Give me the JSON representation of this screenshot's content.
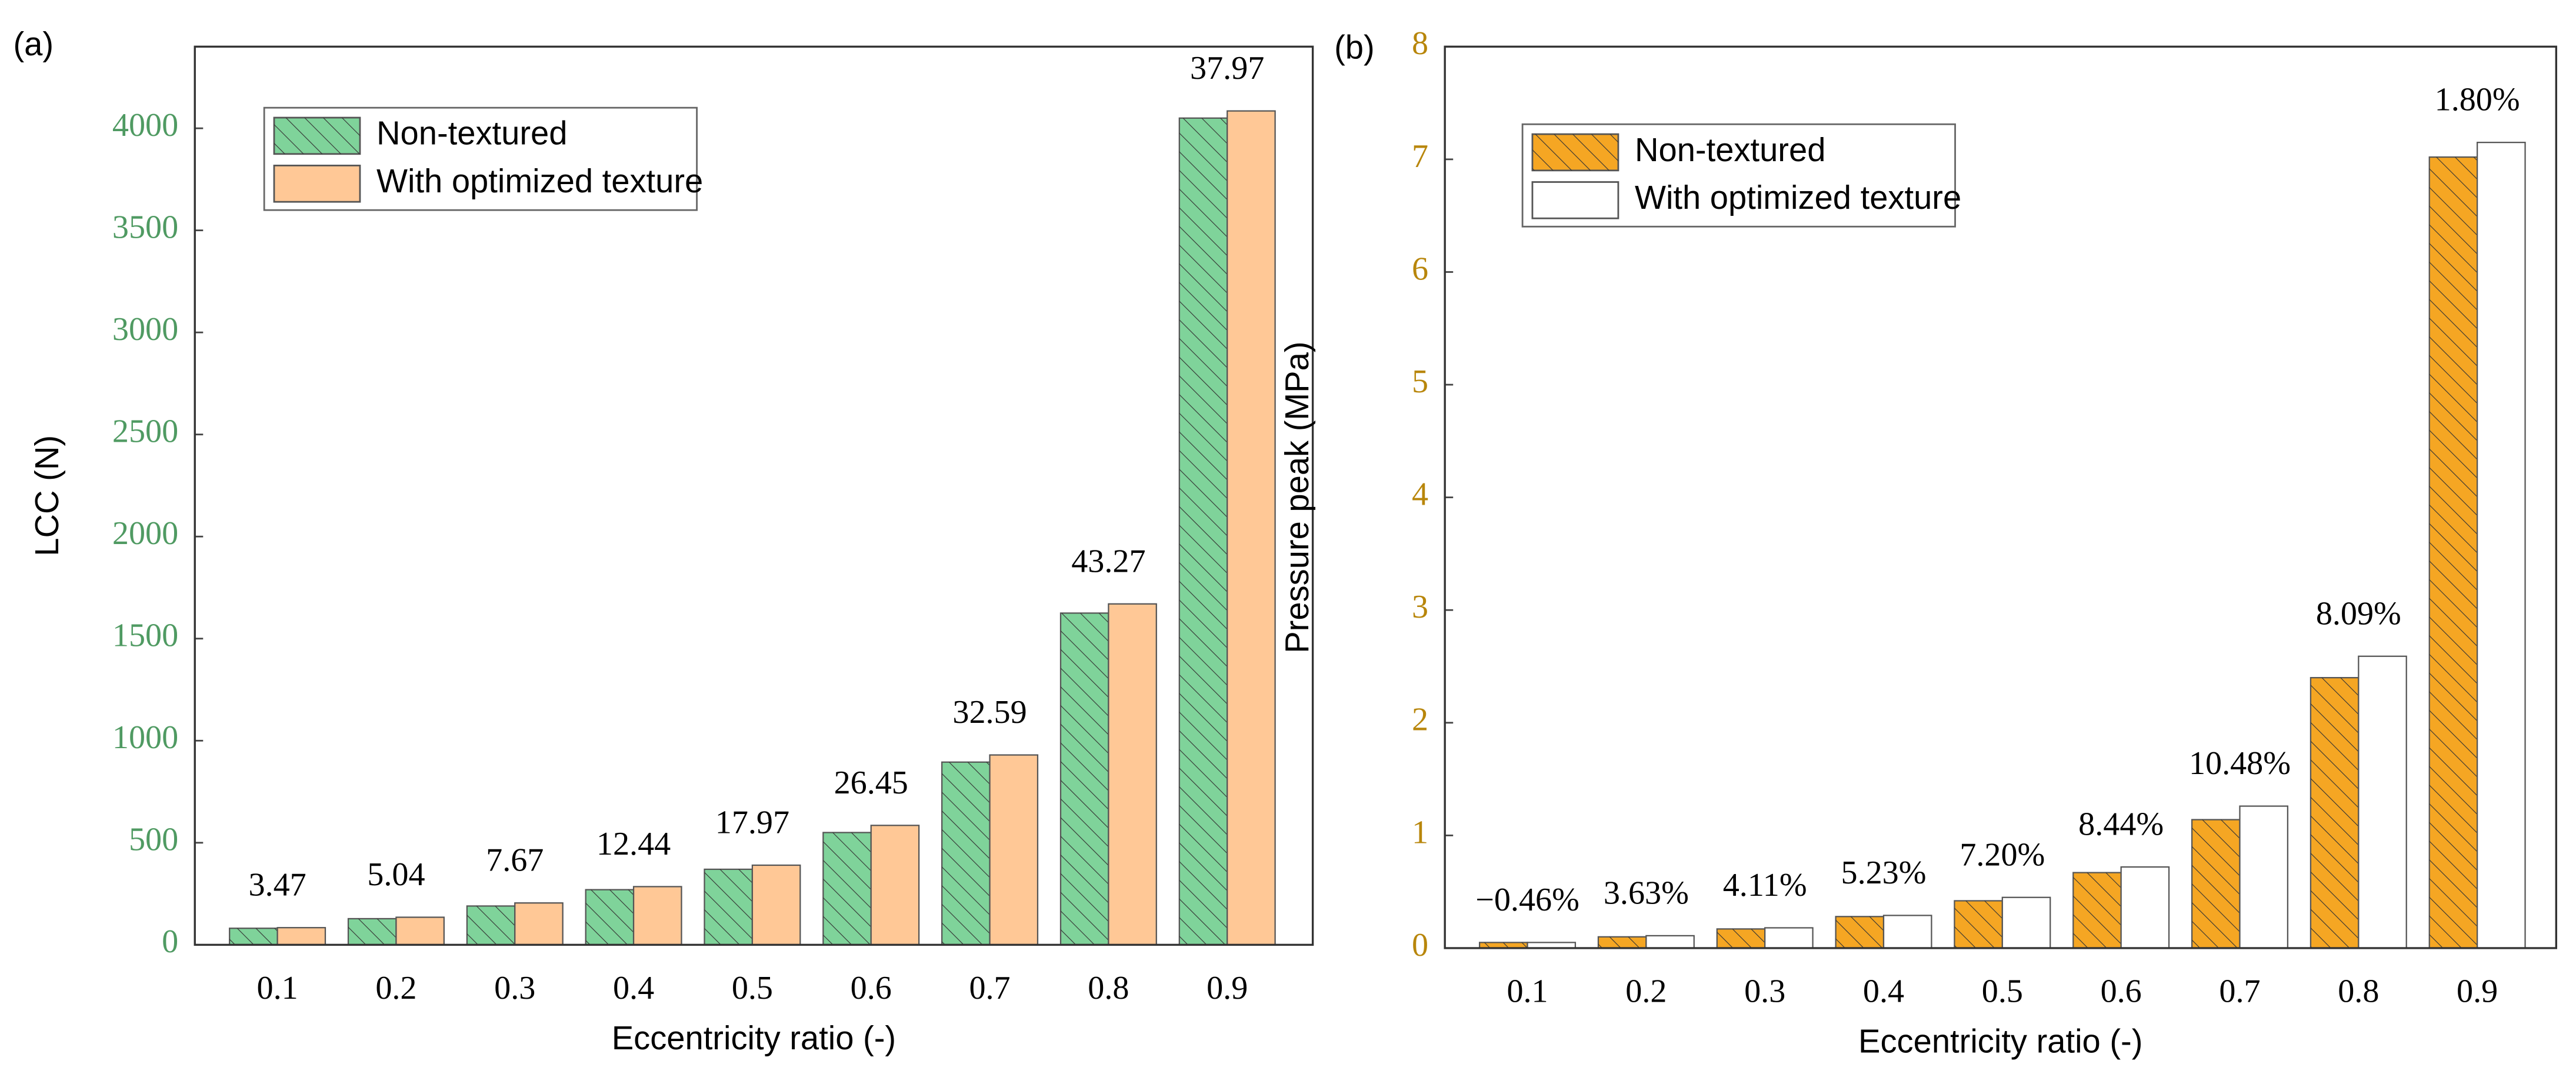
{
  "chart_data": [
    {
      "type": "bar",
      "panel": "(a)",
      "ylabel": "LCC (N)",
      "xlabel": "Eccentricity ratio (-)",
      "categories": [
        "0.1",
        "0.2",
        "0.3",
        "0.4",
        "0.5",
        "0.6",
        "0.7",
        "0.8",
        "0.9"
      ],
      "series": [
        {
          "name": "Non-textured",
          "color": "#7fd39a",
          "hatch": true,
          "values": [
            81,
            128,
            190,
            270,
            370,
            550,
            895,
            1625,
            4050
          ]
        },
        {
          "name": "With optimized texture",
          "color": "#ffc896",
          "hatch": false,
          "values": [
            84,
            135,
            205,
            285,
            390,
            585,
            930,
            1670,
            4085
          ]
        }
      ],
      "annotations": [
        "3.47",
        "5.04",
        "7.67",
        "12.44",
        "17.97",
        "26.45",
        "32.59",
        "43.27",
        "37.97"
      ],
      "ylim": [
        0,
        4400
      ],
      "yticks": [
        0,
        500,
        1000,
        1500,
        2000,
        2500,
        3000,
        3500,
        4000
      ],
      "tick_color": "#4f9a62",
      "legend": "upper left"
    },
    {
      "type": "bar",
      "panel": "(b)",
      "ylabel": "Pressure  peak (MPa)",
      "xlabel": "Eccentricity ratio (-)",
      "categories": [
        "0.1",
        "0.2",
        "0.3",
        "0.4",
        "0.5",
        "0.6",
        "0.7",
        "0.8",
        "0.9"
      ],
      "series": [
        {
          "name": "Non-textured",
          "color": "#f5a623",
          "hatch": true,
          "values": [
            0.05,
            0.1,
            0.17,
            0.28,
            0.42,
            0.67,
            1.14,
            2.4,
            7.02
          ]
        },
        {
          "name": "With optimized texture",
          "color": "#ffffff",
          "hatch": false,
          "values": [
            0.05,
            0.11,
            0.18,
            0.29,
            0.45,
            0.72,
            1.26,
            2.59,
            7.15
          ]
        }
      ],
      "annotations": [
        "−0.46%",
        "3.63%",
        "4.11%",
        "5.23%",
        "7.20%",
        "8.44%",
        "10.48%",
        "8.09%",
        "1.80%"
      ],
      "ylim": [
        0,
        8
      ],
      "yticks": [
        0,
        1,
        2,
        3,
        4,
        5,
        6,
        7,
        8
      ],
      "tick_color": "#b8860b",
      "legend": "upper left"
    }
  ]
}
